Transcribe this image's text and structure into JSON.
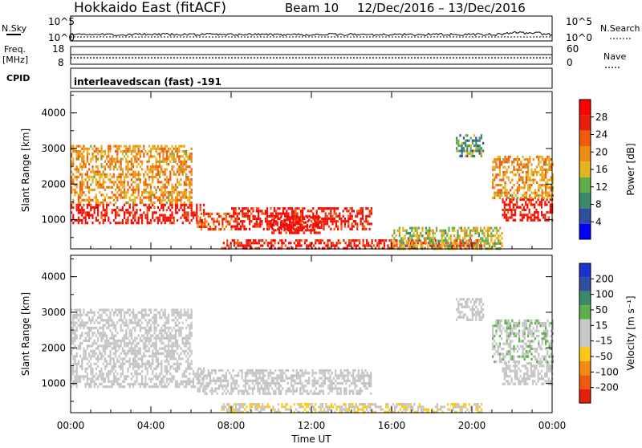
{
  "header": {
    "title": "Hokkaido East (fitACF)",
    "beam": "Beam 10",
    "date_range": "12/Dec/2016 – 13/Dec/2016"
  },
  "noise_panel": {
    "left_label": "N.Sky",
    "right_label": "N.Search",
    "tick_top": "10^5",
    "tick_bottom": "10^0"
  },
  "freq_panel": {
    "left_label_1": "Freq.",
    "left_label_2": "[MHz]",
    "right_label": "Nave",
    "left_ticks": [
      "18",
      "8"
    ],
    "right_ticks": [
      "60",
      "0"
    ],
    "freq_level": 10.5
  },
  "cpid": {
    "label": "CPID",
    "mode": "interleavedscan (fast) -191"
  },
  "colors": {
    "power_scale": [
      "#0000ff",
      "#2e4fa0",
      "#3a8a6a",
      "#5eb04a",
      "#e6b41e",
      "#f08c10",
      "#f05a0a",
      "#e61e0a",
      "#ff0000"
    ],
    "velocity_scale": [
      "#e61e0a",
      "#f05a0a",
      "#f08c10",
      "#ffc814",
      "#c8c8c8",
      "#c8c8c8",
      "#5eb04a",
      "#3a8a6a",
      "#2e4fa0",
      "#1a32d2"
    ],
    "ground_scatter": "#c0c0c0"
  },
  "chart_data": [
    {
      "type": "heatmap",
      "panel": "power",
      "ylabel": "Slant Range [km]",
      "xlabel": "",
      "x_ticks": [
        "00:00",
        "04:00",
        "08:00",
        "12:00",
        "16:00",
        "20:00",
        "00:00"
      ],
      "y_ticks": [
        "1000",
        "2000",
        "3000",
        "4000"
      ],
      "xlim": [
        0,
        24
      ],
      "ylim": [
        180,
        4600
      ],
      "colorbar": {
        "label": "Power [dB]",
        "ticks": [
          "4",
          "8",
          "12",
          "16",
          "20",
          "24",
          "28"
        ],
        "range": [
          0,
          30
        ]
      },
      "regions": [
        {
          "t0": 0.0,
          "t1": 6.6,
          "r0": 900,
          "r1": 1450,
          "value": 27
        },
        {
          "t0": 0.0,
          "t1": 6.0,
          "r0": 1450,
          "r1": 3100,
          "value": 18
        },
        {
          "t0": 6.3,
          "t1": 8.0,
          "r0": 700,
          "r1": 1200,
          "value": 22
        },
        {
          "t0": 8.0,
          "t1": 15.0,
          "r0": 750,
          "r1": 1350,
          "value": 26
        },
        {
          "t0": 10.0,
          "t1": 12.5,
          "r0": 600,
          "r1": 1100,
          "value": 28
        },
        {
          "t0": 7.5,
          "t1": 20.5,
          "r0": 200,
          "r1": 450,
          "value": 26
        },
        {
          "t0": 16.0,
          "t1": 21.5,
          "r0": 200,
          "r1": 800,
          "value": 14
        },
        {
          "t0": 21.5,
          "t1": 24.0,
          "r0": 1000,
          "r1": 1600,
          "value": 27
        },
        {
          "t0": 21.0,
          "t1": 24.0,
          "r0": 1600,
          "r1": 2800,
          "value": 18
        },
        {
          "t0": 19.2,
          "t1": 20.6,
          "r0": 2800,
          "r1": 3400,
          "value": 10
        }
      ]
    },
    {
      "type": "heatmap",
      "panel": "velocity",
      "ylabel": "Slant Range [km]",
      "xlabel": "Time UT",
      "x_ticks": [
        "00:00",
        "04:00",
        "08:00",
        "12:00",
        "16:00",
        "20:00",
        "00:00"
      ],
      "y_ticks": [
        "1000",
        "2000",
        "3000",
        "4000"
      ],
      "xlim": [
        0,
        24
      ],
      "ylim": [
        180,
        4600
      ],
      "colorbar": {
        "label": "Velocity [m s⁻¹]",
        "ticks": [
          "200",
          "100",
          "50",
          "15",
          "–15",
          "–50",
          "–100",
          "–200"
        ],
        "range": [
          -250,
          250
        ]
      },
      "regions": [
        {
          "t0": 0.0,
          "t1": 6.6,
          "r0": 900,
          "r1": 1450,
          "value": 0
        },
        {
          "t0": 0.0,
          "t1": 6.0,
          "r0": 1450,
          "r1": 3100,
          "value": 0
        },
        {
          "t0": 6.3,
          "t1": 15.0,
          "r0": 700,
          "r1": 1400,
          "value": 0
        },
        {
          "t0": 7.5,
          "t1": 20.5,
          "r0": 200,
          "r1": 450,
          "value": -40
        },
        {
          "t0": 21.5,
          "t1": 24.0,
          "r0": 1000,
          "r1": 1600,
          "value": 0
        },
        {
          "t0": 21.0,
          "t1": 24.0,
          "r0": 1600,
          "r1": 2800,
          "value": 30
        },
        {
          "t0": 19.2,
          "t1": 20.6,
          "r0": 2800,
          "r1": 3400,
          "value": 0
        }
      ]
    }
  ]
}
